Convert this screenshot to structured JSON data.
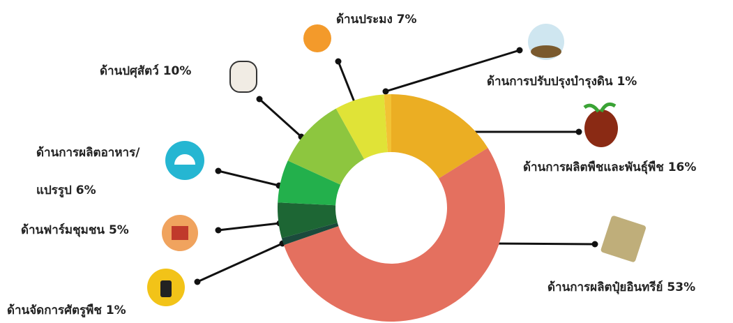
{
  "chart_data": {
    "type": "donut",
    "categories": [
      "ด้านการผลิตพืชและพันธุ์พืช",
      "ด้านการผลิตปุ๋ยอินทรีย์",
      "ด้านจัดการศัตรูพืช",
      "ด้านฟาร์มชุมชน",
      "ด้านการผลิตอาหาร/\nแปรรูป",
      "ด้านปศุสัตว์",
      "ด้านประมง",
      "ด้านการปรับปรุงบำรุงดิน"
    ],
    "values": [
      16,
      53,
      1,
      5,
      6,
      10,
      7,
      1
    ],
    "value_labels": [
      "16%",
      "53%",
      "1%",
      "5%",
      "6%",
      "10%",
      "7%",
      "1%"
    ],
    "colors": [
      "#ebae23",
      "#e4705f",
      "#1b4a3c",
      "#1d6634",
      "#23b04c",
      "#8dc63f",
      "#e0e337",
      "#f2c234"
    ]
  }
}
